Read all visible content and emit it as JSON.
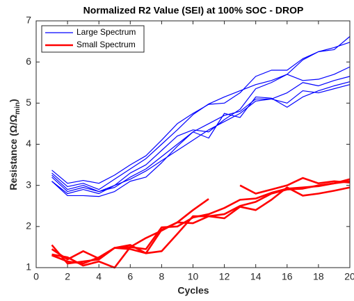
{
  "chart_data": {
    "type": "line",
    "title": "Normalized R2 Value (SEI) at 100% SOC - DROP",
    "xlabel": "Cycles",
    "ylabel": {
      "text": "Resistance (Ω/Ω",
      "subscript": "min",
      "close": ")"
    },
    "x": [
      1,
      2,
      3,
      4,
      5,
      6,
      7,
      8,
      9,
      10,
      11,
      12,
      13,
      14,
      15,
      16,
      17,
      18,
      19,
      20
    ],
    "xlim": [
      0,
      20
    ],
    "xticks": [
      0,
      2,
      4,
      6,
      8,
      10,
      12,
      14,
      16,
      18,
      20
    ],
    "ylim": [
      1,
      7
    ],
    "yticks": [
      1,
      2,
      3,
      4,
      5,
      6,
      7
    ],
    "legend": "upper left",
    "series": [
      {
        "name": "Large Spectrum",
        "color": "#0000ff",
        "values": [
          [
            3.37,
            3.05,
            3.12,
            3.05,
            3.25,
            3.5,
            3.72,
            4.1,
            4.5,
            4.75,
            4.97,
            5.0,
            5.25,
            5.65,
            5.8,
            5.8,
            6.08,
            6.25,
            6.3,
            6.62
          ],
          [
            3.3,
            2.97,
            3.05,
            2.9,
            3.15,
            3.4,
            3.65,
            4.0,
            4.35,
            4.72,
            4.98,
            5.15,
            5.3,
            5.45,
            5.55,
            5.7,
            6.05,
            6.25,
            6.35,
            6.48
          ],
          [
            3.25,
            2.9,
            3.0,
            2.85,
            3.0,
            3.3,
            3.5,
            3.85,
            4.2,
            4.35,
            4.3,
            4.6,
            4.85,
            5.35,
            5.5,
            5.7,
            5.55,
            5.58,
            5.7,
            5.88
          ],
          [
            3.2,
            2.85,
            2.95,
            2.85,
            2.95,
            3.2,
            3.4,
            3.7,
            4.0,
            4.3,
            4.5,
            4.7,
            4.8,
            5.1,
            5.1,
            5.25,
            5.5,
            5.42,
            5.55,
            5.65
          ],
          [
            3.1,
            2.75,
            2.75,
            2.73,
            2.85,
            3.1,
            3.2,
            3.55,
            3.95,
            4.3,
            4.15,
            4.75,
            4.65,
            5.15,
            5.12,
            4.9,
            5.15,
            5.3,
            5.42,
            5.52
          ],
          [
            3.1,
            2.8,
            2.9,
            2.8,
            3.0,
            3.15,
            3.35,
            3.6,
            3.85,
            4.1,
            4.35,
            4.55,
            4.75,
            5.05,
            5.1,
            5.0,
            5.3,
            5.25,
            5.35,
            5.45
          ]
        ]
      },
      {
        "name": "Small Spectrum",
        "color": "#ff0000",
        "values": [
          [
            1.55,
            1.1,
            1.15,
            1.2,
            1.48,
            1.55,
            1.35,
            1.92,
            2.1,
            2.4,
            2.67,
            null,
            3.0,
            2.8,
            2.9,
            3.0,
            3.18,
            3.05,
            3.1,
            3.07
          ],
          [
            1.45,
            1.2,
            1.4,
            1.22,
            1.48,
            1.5,
            1.45,
            1.98,
            2.0,
            2.22,
            2.3,
            2.45,
            2.65,
            2.68,
            2.82,
            2.92,
            2.95,
            2.98,
            3.05,
            3.15
          ],
          [
            1.32,
            1.25,
            1.05,
            1.15,
            1.0,
            1.5,
            1.72,
            1.9,
            2.1,
            2.08,
            2.25,
            2.2,
            2.48,
            2.4,
            2.65,
            2.95,
            2.75,
            2.8,
            2.87,
            2.95
          ],
          [
            1.3,
            1.15,
            1.1,
            1.25,
            1.48,
            1.45,
            1.35,
            1.4,
            1.82,
            2.25,
            2.25,
            2.3,
            2.5,
            2.6,
            2.8,
            2.9,
            2.92,
            3.0,
            3.05,
            3.1
          ]
        ]
      }
    ]
  }
}
